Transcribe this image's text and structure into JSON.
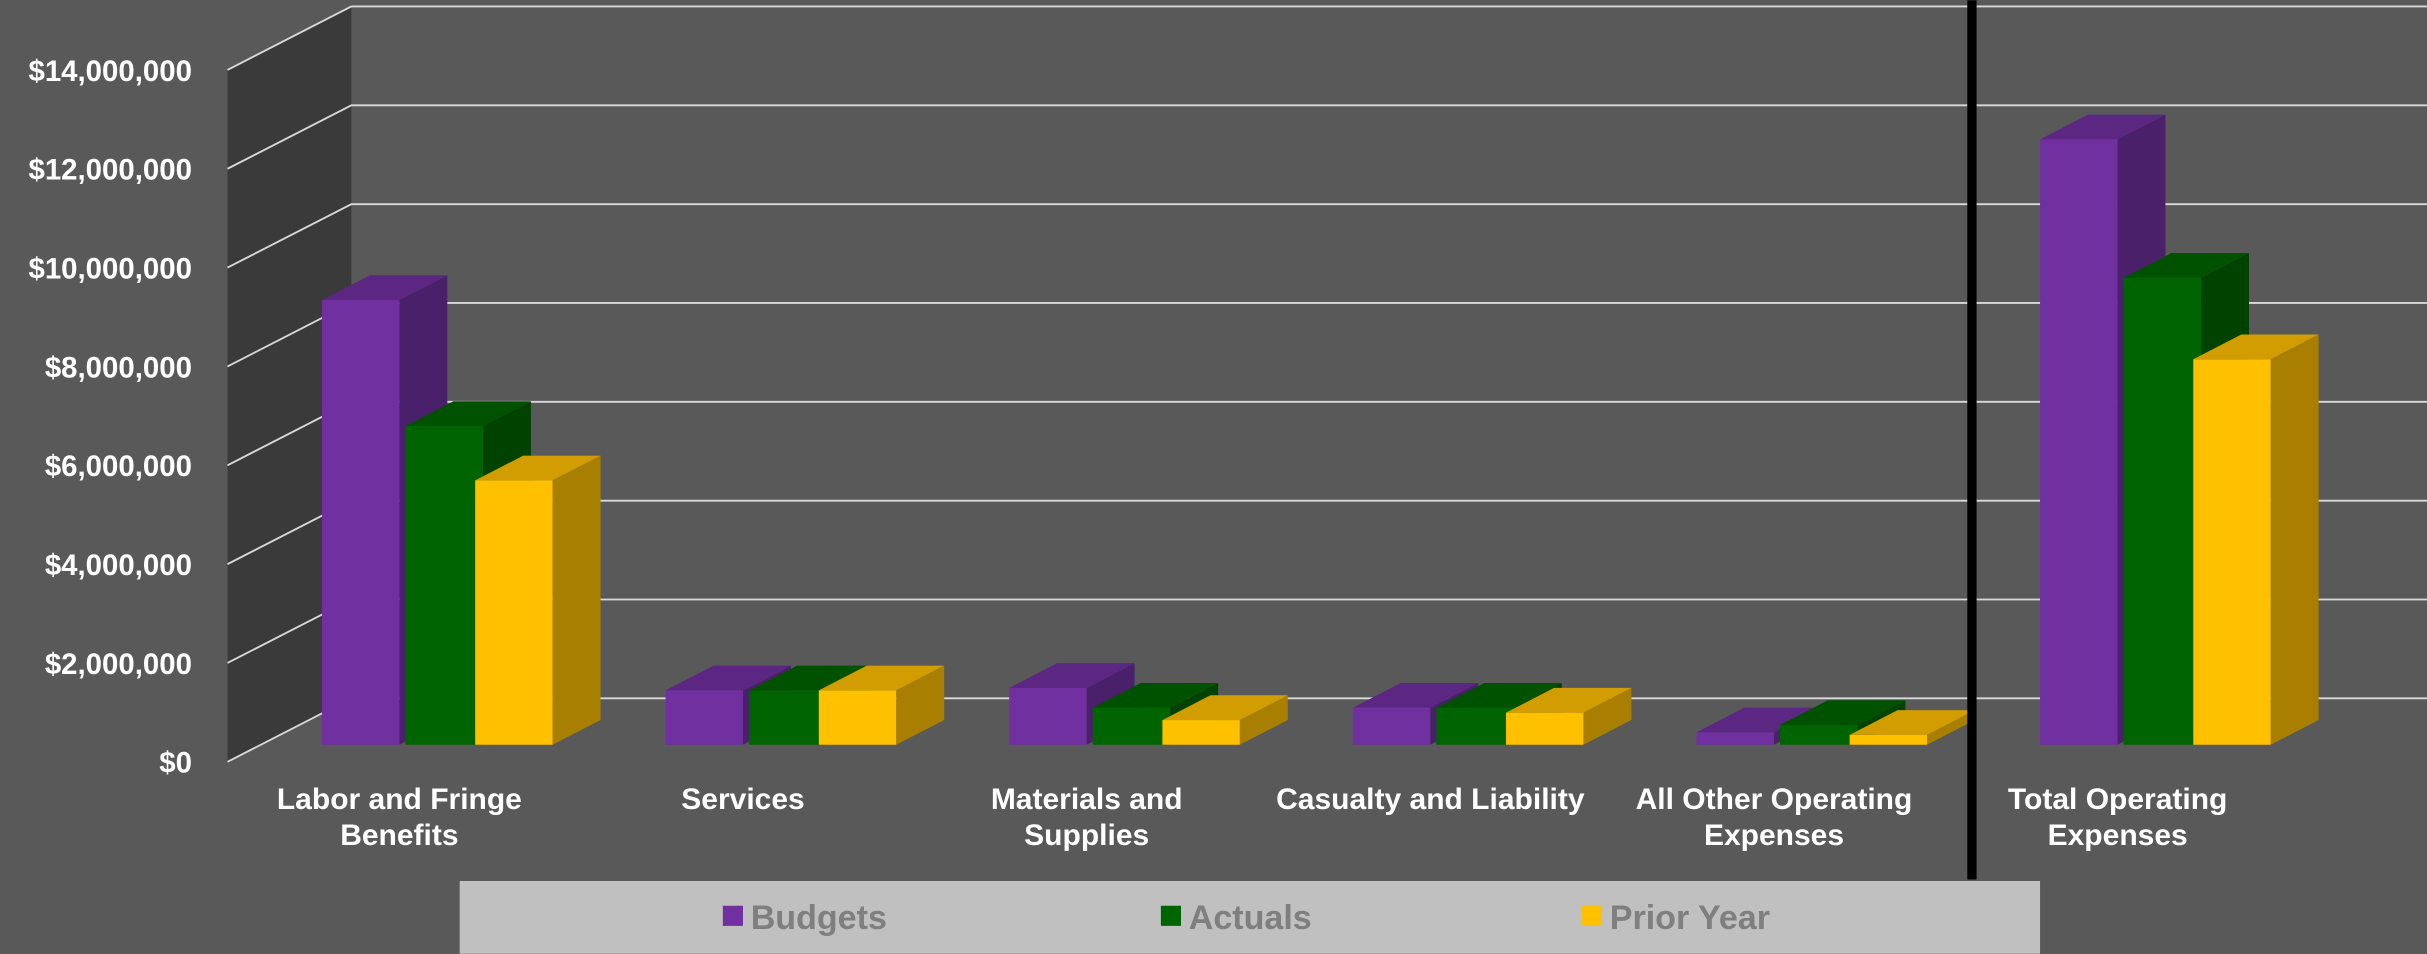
{
  "chart_data": {
    "type": "bar3d",
    "categories": [
      "Labor and Fringe Benefits",
      "Services",
      "Materials and Supplies",
      "Casualty and Liability",
      "All Other Operating Expenses",
      "Total Operating Expenses"
    ],
    "series": [
      {
        "name": "Budgets",
        "color": "#7030a0",
        "values": [
          9000000,
          1100000,
          1150000,
          750000,
          250000,
          12250000
        ]
      },
      {
        "name": "Actuals",
        "color": "#006400",
        "values": [
          6450000,
          1100000,
          750000,
          750000,
          400000,
          9450000
        ]
      },
      {
        "name": "Prior Year",
        "color": "#ffc000",
        "values": [
          5350000,
          1100000,
          500000,
          650000,
          200000,
          7800000
        ]
      }
    ],
    "ylim": [
      0,
      14000000
    ],
    "yticks": [
      {
        "value": 0,
        "label": "$0"
      },
      {
        "value": 2000000,
        "label": "$2,000,000"
      },
      {
        "value": 4000000,
        "label": "$4,000,000"
      },
      {
        "value": 6000000,
        "label": "$6,000,000"
      },
      {
        "value": 8000000,
        "label": "$8,000,000"
      },
      {
        "value": 10000000,
        "label": "$10,000,000"
      },
      {
        "value": 12000000,
        "label": "$12,000,000"
      },
      {
        "value": 14000000,
        "label": "$14,000,000"
      }
    ],
    "grid": true
  }
}
